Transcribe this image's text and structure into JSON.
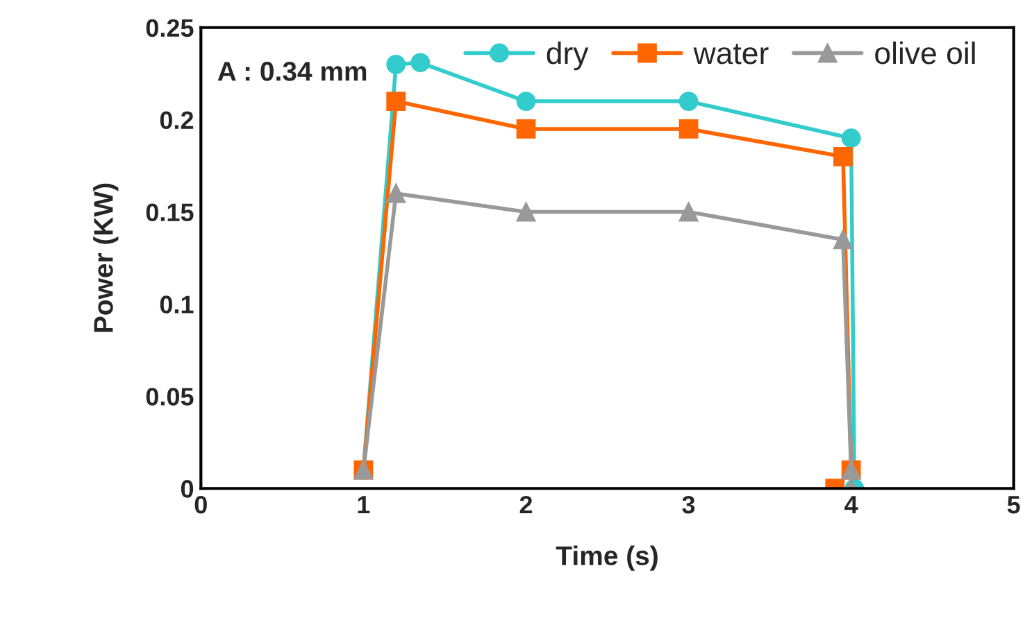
{
  "chart_data": {
    "type": "line",
    "xlabel": "Time (s)",
    "ylabel": "Power (KW)",
    "annotations": [
      "A : 0.34 mm"
    ],
    "series": [
      {
        "name": "dry",
        "color": "#33cccc",
        "marker": "circle",
        "x": [
          1,
          1.2,
          1.35,
          2,
          3,
          4,
          4.02
        ],
        "values": [
          0.01,
          0.23,
          0.231,
          0.21,
          0.21,
          0.19,
          0
        ]
      },
      {
        "name": "water",
        "color": "#ff6600",
        "marker": "square",
        "x": [
          1,
          1.2,
          2,
          3,
          3.95,
          4,
          3.9
        ],
        "values": [
          0.01,
          0.21,
          0.195,
          0.195,
          0.18,
          0.01,
          0
        ]
      },
      {
        "name": "olive oil",
        "color": "#999999",
        "marker": "triangle",
        "x": [
          1,
          1.2,
          2,
          3,
          3.95,
          4,
          4
        ],
        "values": [
          0.01,
          0.16,
          0.15,
          0.15,
          0.135,
          0.01,
          0
        ]
      }
    ],
    "xlim": [
      0,
      5
    ],
    "xticks": [
      0,
      1,
      2,
      3,
      4,
      5
    ],
    "ylim": [
      0,
      0.25
    ],
    "yticks": [
      0,
      0.05,
      0.1,
      0.15,
      0.2,
      0.25
    ],
    "grid": false,
    "legend": "top",
    "line_style": "solid"
  }
}
